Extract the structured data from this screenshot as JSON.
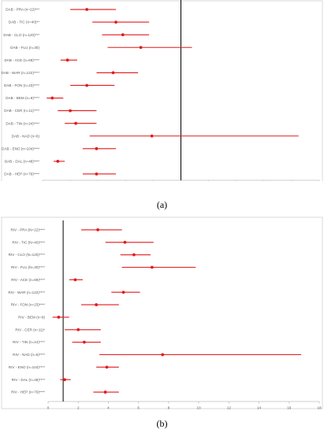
{
  "chart_data": [
    {
      "type": "scatter",
      "panel": "(a)",
      "rows": [
        "DAB - PRA (n=22)***",
        "DAB - TIC (n=40)**",
        "DAB - CLO (n=120)***",
        "DAB - FLU (n=30)",
        "DAB - ACE (n=69)****",
        "DAB - WAR (n=122)****",
        "DAB - FON (n=23)****",
        "DAB - BEM (n=9)****",
        "DAB - CER (n=11)****",
        "DAB - TIN (n=24)****",
        "DAB - NAD (n=6)",
        "DAB - ENO (n=104)****",
        "DAB - DAL (n=48)****",
        "DAB - HEP (n=79)****"
      ],
      "points": [
        0.32,
        0.53,
        0.58,
        0.71,
        0.18,
        0.51,
        0.32,
        0.07,
        0.2,
        0.24,
        0.79,
        0.39,
        0.11,
        0.39
      ],
      "ci_low": [
        0.2,
        0.36,
        0.43,
        0.47,
        0.13,
        0.39,
        0.2,
        0.03,
        0.11,
        0.16,
        0.34,
        0.29,
        0.08,
        0.29
      ],
      "ci_high": [
        0.53,
        0.77,
        0.77,
        1.08,
        0.25,
        0.69,
        0.52,
        0.15,
        0.39,
        0.39,
        1.85,
        0.53,
        0.16,
        0.53
      ],
      "xlim": [
        0,
        2
      ],
      "xticks": [
        "0",
        "0.2",
        "0.4",
        "0.6",
        "0.8",
        "1",
        "1.2",
        "1.4",
        "1.6",
        "1.8",
        "2"
      ],
      "reference_x": 1
    },
    {
      "type": "scatter",
      "panel": "(b)",
      "rows": [
        "RIV - PRA (N=22)****",
        "RIV - TIC (N=40)****",
        "RIV - CLO (N=120)****",
        "RIV - FLU (N=30)****",
        "RIV - ACE (n=69)****",
        "RIV - WAR (n=122)****",
        "RIV - FON (n=23)****",
        "RIV - BEM (n=9)",
        "RIV - CER (n=11)*",
        "RIV - TIN (n=24)****",
        "RIV - NAD (n=6)****",
        "RIV - ENO (n=104)****",
        "RIV - DAL (n=48)****",
        "RIV - HEP (n=79)****"
      ],
      "points": [
        3.3,
        5.1,
        5.7,
        6.9,
        1.8,
        5.0,
        3.2,
        0.7,
        2.0,
        2.4,
        7.6,
        3.9,
        1.1,
        3.8
      ],
      "ci_low": [
        2.2,
        3.8,
        4.8,
        4.9,
        1.4,
        4.2,
        2.2,
        0.3,
        1.1,
        1.6,
        3.4,
        3.2,
        0.8,
        3.0
      ],
      "ci_high": [
        4.9,
        7.0,
        6.8,
        9.8,
        2.3,
        6.1,
        4.7,
        1.4,
        3.5,
        3.5,
        16.8,
        4.7,
        1.5,
        4.7
      ],
      "xlim": [
        0,
        18
      ],
      "xticks": [
        "0",
        "2",
        "4",
        "6",
        "8",
        "10",
        "12",
        "14",
        "16",
        "18"
      ],
      "reference_x": 1
    }
  ],
  "captions": {
    "a": "(a)",
    "b": "(b)"
  },
  "colors": {
    "marker": "#e31a1c",
    "frame": "#cfcfcf",
    "reference_line": "#000000",
    "axis_text": "#595959"
  }
}
